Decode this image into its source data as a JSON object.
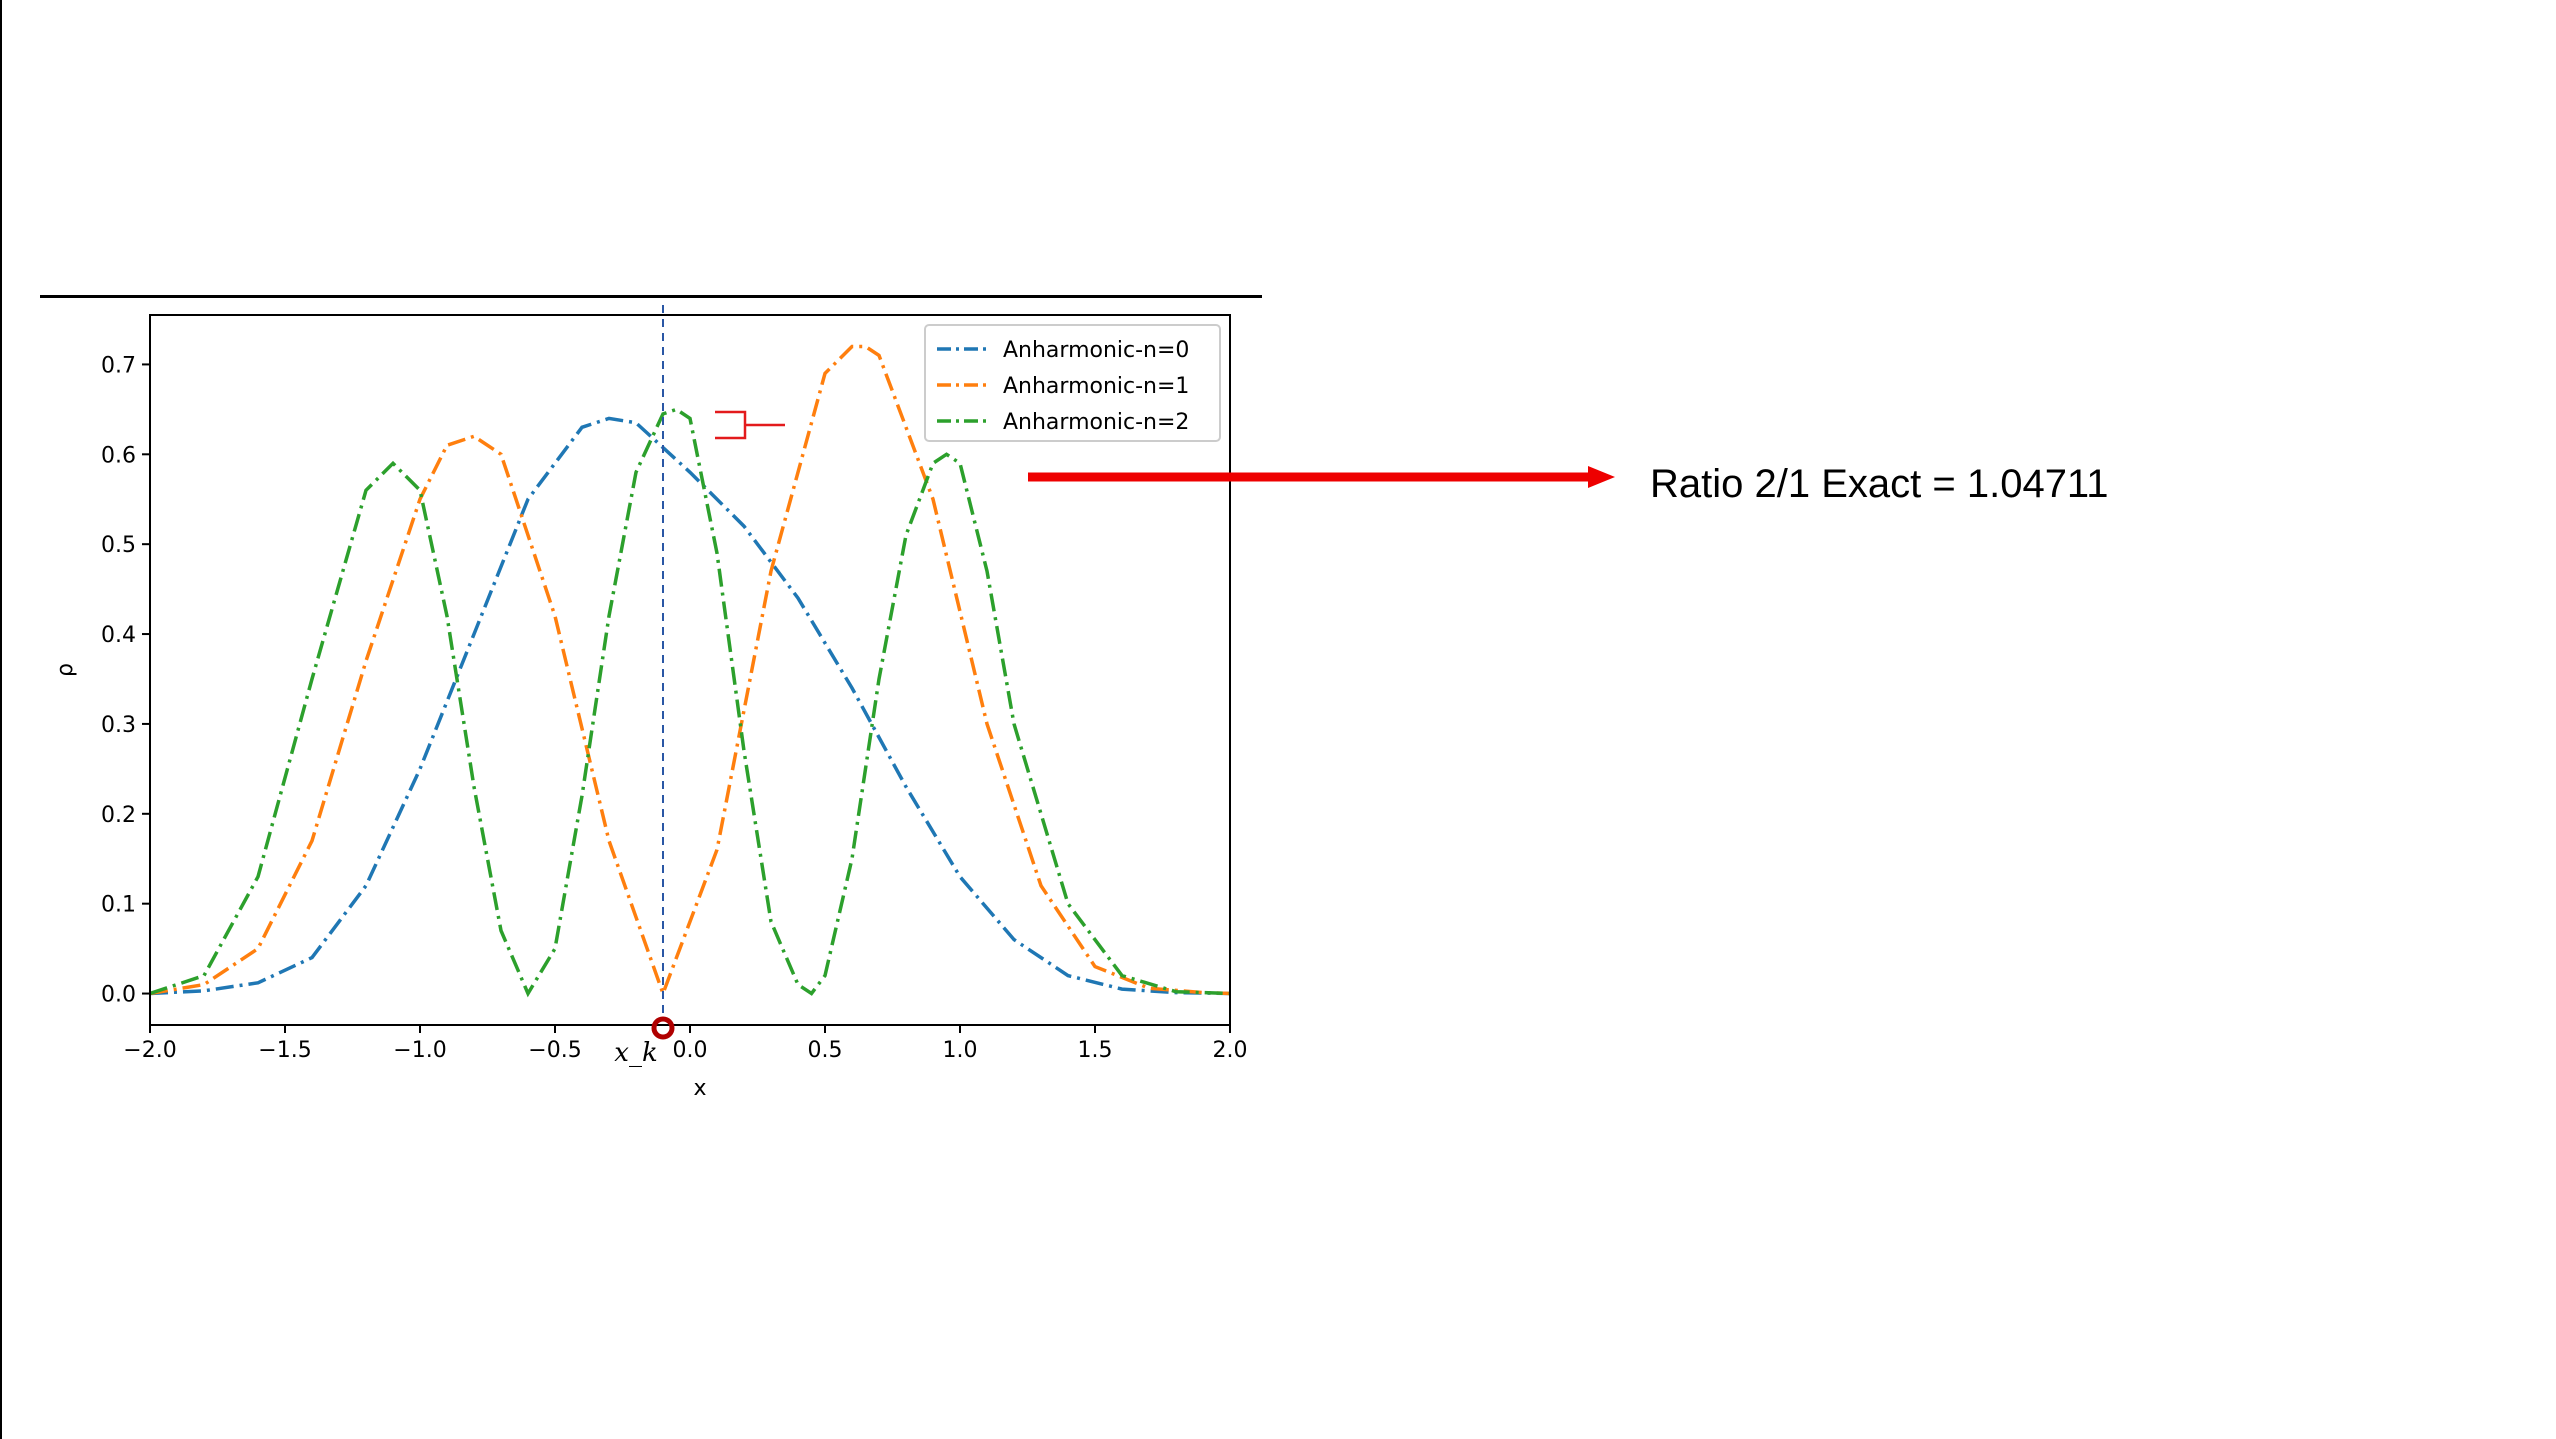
{
  "annotation": {
    "ratio_text": "Ratio 2/1 Exact = 1.04711",
    "arrow_color": "#ee0000"
  },
  "chart_data": {
    "type": "line",
    "xlabel": "x",
    "ylabel": "ρ",
    "xlim": [
      -2.0,
      2.0
    ],
    "ylim": [
      -0.035,
      0.755
    ],
    "xticks": [
      -2.0,
      -1.5,
      -1.0,
      -0.5,
      0.0,
      0.5,
      1.0,
      1.5,
      2.0
    ],
    "xtick_labels": [
      "−2.0",
      "−1.5",
      "−1.0",
      "−0.5",
      "0.0",
      "0.5",
      "1.0",
      "1.5",
      "2.0"
    ],
    "yticks": [
      0.0,
      0.1,
      0.2,
      0.3,
      0.4,
      0.5,
      0.6,
      0.7
    ],
    "ytick_labels": [
      "0.0",
      "0.1",
      "0.2",
      "0.3",
      "0.4",
      "0.5",
      "0.6",
      "0.7"
    ],
    "legend_position": "top-right",
    "line_style": "dash-dot",
    "marker": {
      "label": "x_k",
      "x": -0.1
    },
    "series": [
      {
        "name": "Anharmonic-n=0",
        "color": "#1f77b4",
        "x": [
          -2.0,
          -1.8,
          -1.6,
          -1.4,
          -1.2,
          -1.0,
          -0.8,
          -0.6,
          -0.4,
          -0.3,
          -0.2,
          0.0,
          0.2,
          0.4,
          0.6,
          0.8,
          1.0,
          1.2,
          1.4,
          1.6,
          1.8,
          2.0
        ],
        "y": [
          0.0,
          0.003,
          0.012,
          0.04,
          0.12,
          0.25,
          0.4,
          0.55,
          0.63,
          0.64,
          0.635,
          0.58,
          0.52,
          0.44,
          0.34,
          0.23,
          0.13,
          0.06,
          0.02,
          0.005,
          0.001,
          0.0
        ]
      },
      {
        "name": "Anharmonic-n=1",
        "color": "#ff7f0e",
        "x": [
          -2.0,
          -1.8,
          -1.6,
          -1.4,
          -1.2,
          -1.0,
          -0.9,
          -0.8,
          -0.7,
          -0.5,
          -0.3,
          -0.1,
          0.1,
          0.3,
          0.5,
          0.6,
          0.65,
          0.7,
          0.9,
          1.1,
          1.3,
          1.5,
          1.7,
          1.9,
          2.0
        ],
        "y": [
          0.0,
          0.01,
          0.05,
          0.17,
          0.37,
          0.55,
          0.61,
          0.62,
          0.6,
          0.42,
          0.17,
          0.0,
          0.16,
          0.47,
          0.69,
          0.72,
          0.72,
          0.71,
          0.55,
          0.3,
          0.12,
          0.03,
          0.006,
          0.001,
          0.0
        ]
      },
      {
        "name": "Anharmonic-n=2",
        "color": "#2ca02c",
        "x": [
          -2.0,
          -1.8,
          -1.6,
          -1.4,
          -1.2,
          -1.1,
          -1.0,
          -0.9,
          -0.8,
          -0.7,
          -0.6,
          -0.5,
          -0.4,
          -0.3,
          -0.2,
          -0.1,
          -0.05,
          0.0,
          0.1,
          0.2,
          0.3,
          0.4,
          0.45,
          0.5,
          0.6,
          0.7,
          0.8,
          0.9,
          0.95,
          1.0,
          1.1,
          1.2,
          1.4,
          1.6,
          1.8,
          2.0
        ],
        "y": [
          0.0,
          0.02,
          0.13,
          0.35,
          0.56,
          0.59,
          0.56,
          0.42,
          0.23,
          0.07,
          0.0,
          0.05,
          0.22,
          0.42,
          0.58,
          0.645,
          0.65,
          0.64,
          0.49,
          0.27,
          0.08,
          0.01,
          0.0,
          0.02,
          0.15,
          0.35,
          0.51,
          0.59,
          0.6,
          0.59,
          0.47,
          0.3,
          0.1,
          0.02,
          0.002,
          0.0
        ]
      }
    ]
  }
}
